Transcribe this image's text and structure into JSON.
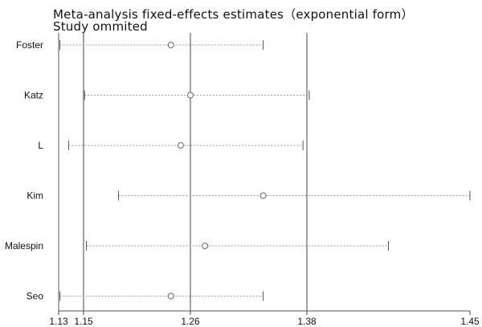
{
  "chart_data": {
    "type": "forest",
    "title": "Meta-analysis fixed-effects estimates（exponential form）",
    "subtitle": "Study ommited",
    "xlabel": "",
    "ylabel": "",
    "x_ticks": [
      {
        "value": 1.13,
        "label": "1.13"
      },
      {
        "value": 1.15,
        "label": "1.15"
      },
      {
        "value": 1.26,
        "label": "1.26"
      },
      {
        "value": 1.38,
        "label": "1.38"
      },
      {
        "value": 1.45,
        "label": "1.45"
      }
    ],
    "reference_lines": [
      1.15,
      1.26,
      1.38
    ],
    "xlim": [
      1.13,
      1.45
    ],
    "studies": [
      {
        "label": "Foster",
        "estimate": 1.24,
        "lower": 1.131,
        "upper": 1.335
      },
      {
        "label": "Katz",
        "estimate": 1.26,
        "lower": 1.151,
        "upper": 1.381
      },
      {
        "label": "L",
        "estimate": 1.25,
        "lower": 1.138,
        "upper": 1.376
      },
      {
        "label": "Kim",
        "estimate": 1.335,
        "lower": 1.186,
        "upper": 1.45
      },
      {
        "label": "Malespin",
        "estimate": 1.275,
        "lower": 1.153,
        "upper": 1.415
      },
      {
        "label": "Seo",
        "estimate": 1.24,
        "lower": 1.131,
        "upper": 1.335
      }
    ],
    "grid": false,
    "legend": "none"
  }
}
